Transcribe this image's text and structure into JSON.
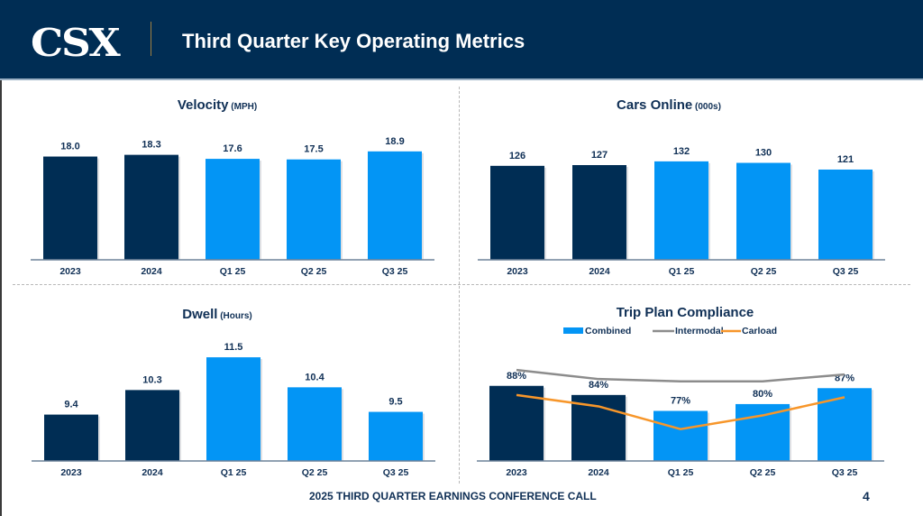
{
  "header": {
    "logo": "CSX",
    "title": "Third Quarter Key Operating Metrics"
  },
  "footer": {
    "text": "2025 THIRD QUARTER EARNINGS CONFERENCE CALL",
    "page": "4"
  },
  "colors": {
    "navy": "#002d54",
    "blue": "#0395f5",
    "gray": "#8c8c8c",
    "orange": "#f7962a",
    "text": "#0f2f55"
  },
  "chart_data": [
    {
      "id": "velocity",
      "type": "bar",
      "title": "Velocity",
      "unit": "(MPH)",
      "categories": [
        "2023",
        "2024",
        "Q1 25",
        "Q2 25",
        "Q3 25"
      ],
      "values": [
        18.0,
        18.3,
        17.6,
        17.5,
        18.9
      ],
      "labels": [
        "18.0",
        "18.3",
        "17.6",
        "17.5",
        "18.9"
      ],
      "bar_colors": [
        "navy",
        "navy",
        "blue",
        "blue",
        "blue"
      ],
      "xlabel": "",
      "ylabel": "",
      "ylim": [
        0,
        19.5
      ],
      "grid": false
    },
    {
      "id": "cars-online",
      "type": "bar",
      "title": "Cars Online",
      "unit": "(000s)",
      "categories": [
        "2023",
        "2024",
        "Q1 25",
        "Q2 25",
        "Q3 25"
      ],
      "values": [
        126,
        127,
        132,
        130,
        121
      ],
      "labels": [
        "126",
        "127",
        "132",
        "130",
        "121"
      ],
      "bar_colors": [
        "navy",
        "navy",
        "blue",
        "blue",
        "blue"
      ],
      "xlabel": "",
      "ylabel": "",
      "ylim": [
        0,
        150
      ],
      "grid": false
    },
    {
      "id": "dwell",
      "type": "bar",
      "title": "Dwell",
      "unit": "(Hours)",
      "categories": [
        "2023",
        "2024",
        "Q1 25",
        "Q2 25",
        "Q3 25"
      ],
      "values": [
        9.4,
        10.3,
        11.5,
        10.4,
        9.5
      ],
      "labels": [
        "9.4",
        "10.3",
        "11.5",
        "10.4",
        "9.5"
      ],
      "bar_colors": [
        "navy",
        "navy",
        "blue",
        "blue",
        "blue"
      ],
      "xlabel": "",
      "ylabel": "",
      "ylim": [
        7.7,
        11.8
      ],
      "grid": false
    },
    {
      "id": "trip-plan-compliance",
      "type": "bar",
      "title": "Trip Plan Compliance",
      "unit": "",
      "categories": [
        "2023",
        "2024",
        "Q1 25",
        "Q2 25",
        "Q3 25"
      ],
      "legend": [
        "Combined",
        "Intermodal",
        "Carload"
      ],
      "legend_position": "top",
      "values": [
        88,
        84,
        77,
        80,
        87
      ],
      "labels": [
        "88%",
        "84%",
        "77%",
        "80%",
        "87%"
      ],
      "bar_colors": [
        "navy",
        "navy",
        "blue",
        "blue",
        "blue"
      ],
      "series": [
        {
          "name": "Combined",
          "kind": "bar",
          "values": [
            88,
            84,
            77,
            80,
            87
          ]
        },
        {
          "name": "Intermodal",
          "kind": "line",
          "color": "gray",
          "values": [
            95,
            91,
            90,
            90,
            93
          ]
        },
        {
          "name": "Carload",
          "kind": "line",
          "color": "orange",
          "values": [
            84,
            79,
            69,
            75,
            83
          ]
        }
      ],
      "xlabel": "",
      "ylabel": "",
      "ylim": [
        55,
        99
      ],
      "grid": false
    }
  ]
}
